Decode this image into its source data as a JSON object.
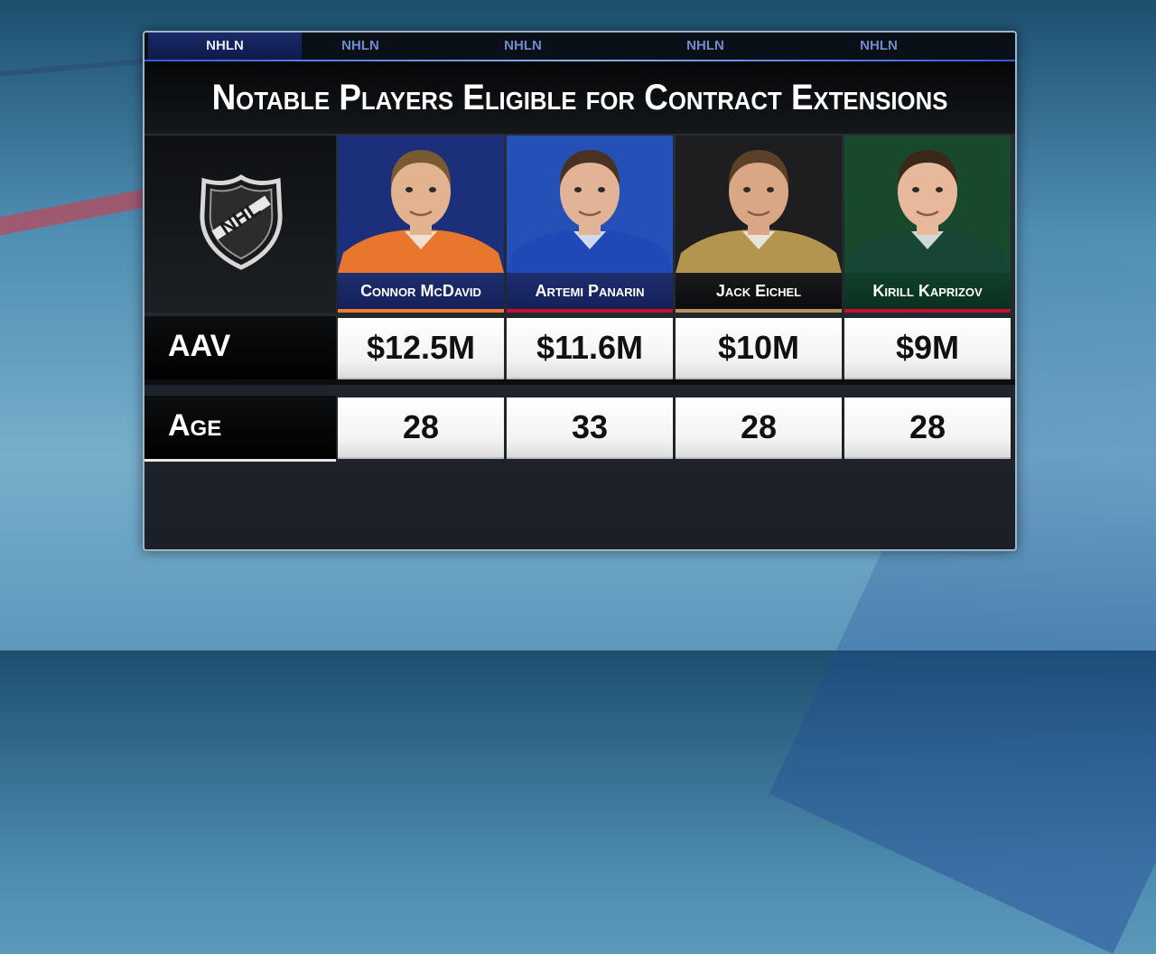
{
  "tabs": [
    "NHLN",
    "NHLN",
    "NHLN",
    "NHLN",
    "NHLN"
  ],
  "title": "Notable Players Eligible for Contract Extensions",
  "logo": {
    "icon": "nhl-shield-logo",
    "text": "NHL"
  },
  "rows": {
    "aav_label": "AAV",
    "age_label": "Age"
  },
  "players": [
    {
      "name": "Connor McDavid",
      "aav": "$12.5M",
      "age": "28",
      "bg": "#1b2f7a",
      "jersey": "#e8762d",
      "hair": "#7a5a32",
      "skin": "#e3b28f",
      "stripe": "#f07d2b"
    },
    {
      "name": "Artemi Panarin",
      "aav": "$11.6M",
      "age": "33",
      "bg": "#2550b8",
      "jersey": "#1f49b6",
      "hair": "#4a3222",
      "skin": "#e2b394",
      "stripe": "#c8102e"
    },
    {
      "name": "Jack Eichel",
      "aav": "$10M",
      "age": "28",
      "bg": "#1e1e20",
      "jersey": "#b49550",
      "hair": "#5a4128",
      "skin": "#d9a785",
      "stripe": "#b4975a"
    },
    {
      "name": "Kirill Kaprizov",
      "aav": "$9M",
      "age": "28",
      "bg": "#174a2c",
      "jersey": "#154734",
      "hair": "#3a2818",
      "skin": "#e8b89b",
      "stripe": "#c8102e"
    }
  ]
}
